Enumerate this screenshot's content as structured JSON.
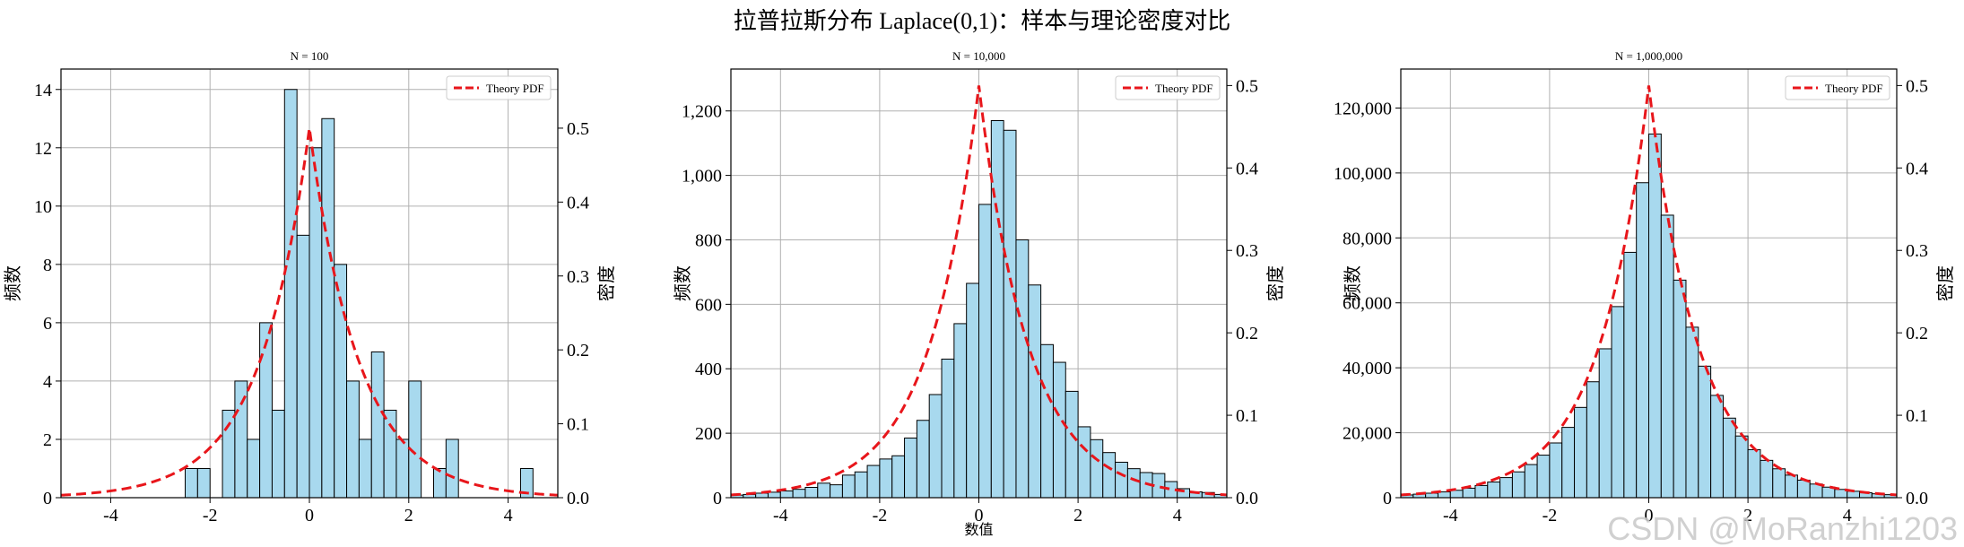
{
  "figure": {
    "title": "拉普拉斯分布 Laplace(0,1)：样本与理论密度对比",
    "watermark": "CSDN @MoRanzhi1203"
  },
  "colors": {
    "bar_fill": "#a8d9ee",
    "bar_edge": "#000000",
    "pdf_line": "#e8161b",
    "grid": "#b0b0b0"
  },
  "chart_data": [
    {
      "type": "bar",
      "title": "N = 100",
      "xlabel": "",
      "ylabel": "频数",
      "y2label": "密度",
      "bin_width": 0.25,
      "bin_starts": [
        -2.5,
        -2.25,
        -1.75,
        -1.5,
        -1.25,
        -1.0,
        -0.75,
        -0.5,
        -0.25,
        0.0,
        0.25,
        0.5,
        0.75,
        1.0,
        1.25,
        1.5,
        1.75,
        2.0,
        2.5,
        2.75,
        4.25
      ],
      "values": [
        1,
        1,
        3,
        4,
        2,
        6,
        3,
        14,
        9,
        12,
        13,
        8,
        4,
        2,
        5,
        3,
        2,
        4,
        1,
        2,
        1
      ],
      "xlim": [
        -5,
        5
      ],
      "ylim": [
        0,
        14.7
      ],
      "y2lim": [
        0,
        0.58
      ],
      "xticks": [
        "-4",
        "-2",
        "0",
        "2",
        "4"
      ],
      "yticks": [
        "0",
        "2",
        "4",
        "6",
        "8",
        "10",
        "12",
        "14"
      ],
      "y2ticks": [
        "0.0",
        "0.1",
        "0.2",
        "0.3",
        "0.4",
        "0.5"
      ],
      "legend": {
        "label": "Theory PDF",
        "location": "top-right"
      },
      "grid": true
    },
    {
      "type": "bar",
      "title": "N = 10,000",
      "xlabel": "数值",
      "ylabel": "频数",
      "y2label": "密度",
      "bin_width": 0.25,
      "bin_starts": [
        -5.0,
        -4.75,
        -4.5,
        -4.25,
        -4.0,
        -3.75,
        -3.5,
        -3.25,
        -3.0,
        -2.75,
        -2.5,
        -2.25,
        -2.0,
        -1.75,
        -1.5,
        -1.25,
        -1.0,
        -0.75,
        -0.5,
        -0.25,
        0.0,
        0.25,
        0.5,
        0.75,
        1.0,
        1.25,
        1.5,
        1.75,
        2.0,
        2.25,
        2.5,
        2.75,
        3.0,
        3.25,
        3.5,
        3.75,
        4.0,
        4.25,
        4.5,
        4.75
      ],
      "values": [
        8,
        10,
        14,
        17,
        21,
        26,
        32,
        45,
        40,
        70,
        80,
        100,
        120,
        130,
        185,
        240,
        320,
        430,
        540,
        665,
        910,
        1170,
        1140,
        800,
        660,
        475,
        420,
        330,
        220,
        180,
        140,
        110,
        90,
        78,
        75,
        50,
        28,
        18,
        16,
        10
      ],
      "xlim": [
        -5,
        5
      ],
      "ylim": [
        0,
        1330
      ],
      "y2lim": [
        0,
        0.52
      ],
      "xticks": [
        "-4",
        "-2",
        "0",
        "2",
        "4"
      ],
      "yticks": [
        "0",
        "200",
        "400",
        "600",
        "800",
        "1,000",
        "1,200"
      ],
      "y2ticks": [
        "0.0",
        "0.1",
        "0.2",
        "0.3",
        "0.4",
        "0.5"
      ],
      "legend": {
        "label": "Theory PDF",
        "location": "top-right"
      },
      "grid": true
    },
    {
      "type": "bar",
      "title": "N = 1,000,000",
      "xlabel": "",
      "ylabel": "频数",
      "y2label": "密度",
      "bin_width": 0.25,
      "bin_starts": [
        -5.0,
        -4.75,
        -4.5,
        -4.25,
        -4.0,
        -3.75,
        -3.5,
        -3.25,
        -3.0,
        -2.75,
        -2.5,
        -2.25,
        -2.0,
        -1.75,
        -1.5,
        -1.25,
        -1.0,
        -0.75,
        -0.5,
        -0.25,
        0.0,
        0.25,
        0.5,
        0.75,
        1.0,
        1.25,
        1.5,
        1.75,
        2.0,
        2.25,
        2.5,
        2.75,
        3.0,
        3.25,
        3.5,
        3.75,
        4.0,
        4.25,
        4.5,
        4.75
      ],
      "values": [
        840,
        1080,
        1380,
        1780,
        2280,
        2920,
        3760,
        4820,
        6190,
        7950,
        10200,
        13100,
        16850,
        21650,
        27800,
        35700,
        45850,
        58850,
        75550,
        97000,
        112000,
        87000,
        67000,
        52500,
        40500,
        31500,
        24500,
        19000,
        14800,
        11500,
        8900,
        6950,
        5400,
        4200,
        3250,
        2550,
        1980,
        1540,
        1200,
        930
      ],
      "xlim": [
        -5,
        5
      ],
      "ylim": [
        0,
        132000
      ],
      "y2lim": [
        0,
        0.52
      ],
      "xticks": [
        "-4",
        "-2",
        "0",
        "2",
        "4"
      ],
      "yticks": [
        "0",
        "20,000",
        "40,000",
        "60,000",
        "80,000",
        "100,000",
        "120,000"
      ],
      "y2ticks": [
        "0.0",
        "0.1",
        "0.2",
        "0.3",
        "0.4",
        "0.5"
      ],
      "legend": {
        "label": "Theory PDF",
        "location": "top-right"
      },
      "grid": true
    }
  ]
}
